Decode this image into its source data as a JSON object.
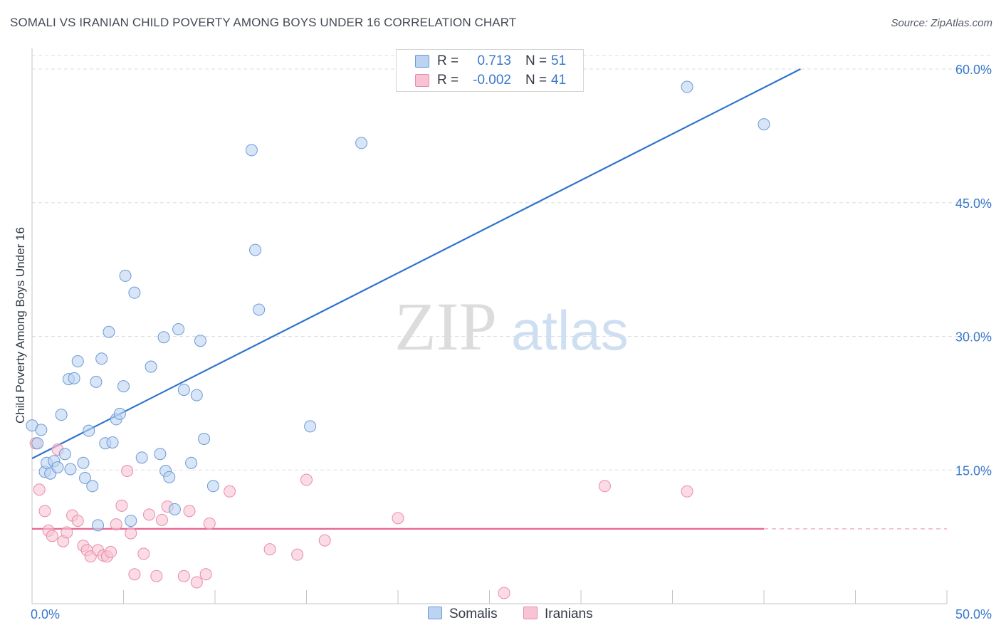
{
  "header": {
    "title": "SOMALI VS IRANIAN CHILD POVERTY AMONG BOYS UNDER 16 CORRELATION CHART",
    "source": "Source: ZipAtlas.com"
  },
  "watermark": {
    "zip": "ZIP",
    "atlas": "atlas"
  },
  "legend": {
    "rows": [
      {
        "r_label": "R =",
        "r_value": "0.713",
        "n_label": "N =",
        "n_value": "51"
      },
      {
        "r_label": "R =",
        "r_value": "-0.002",
        "n_label": "N =",
        "n_value": "41"
      }
    ]
  },
  "bottom_legend": {
    "somalis": "Somalis",
    "iranians": "Iranians"
  },
  "colors": {
    "somali_fill": "#bcd3f2",
    "somali_stroke": "#6a9ad8",
    "somali_line": "#2f74cc",
    "iranian_fill": "#f8c4d4",
    "iranian_stroke": "#e98aaa",
    "iranian_line": "#e7658f",
    "axis_label": "#3a78c9",
    "grid": "#dddddd"
  },
  "chart_data": {
    "type": "scatter",
    "title": "SOMALI VS IRANIAN CHILD POVERTY AMONG BOYS UNDER 16 CORRELATION CHART",
    "xlabel": "",
    "ylabel": "Child Poverty Among Boys Under 16",
    "xlim": [
      0,
      50
    ],
    "ylim": [
      0,
      60
    ],
    "x_tick_labels": [
      "0.0%",
      "50.0%"
    ],
    "y_ticks": [
      15,
      30,
      45,
      60
    ],
    "y_tick_labels": [
      "15.0%",
      "30.0%",
      "45.0%",
      "60.0%"
    ],
    "grid": true,
    "legend_position": "top-center",
    "series": [
      {
        "name": "Somalis",
        "r": 0.713,
        "n": 51,
        "trend": {
          "x": [
            0,
            42
          ],
          "y": [
            16.3,
            60
          ]
        },
        "points": [
          [
            0.0,
            20.0
          ],
          [
            0.3,
            18.0
          ],
          [
            0.5,
            19.5
          ],
          [
            0.7,
            14.8
          ],
          [
            0.8,
            15.8
          ],
          [
            1.0,
            14.6
          ],
          [
            1.2,
            16.0
          ],
          [
            1.4,
            15.3
          ],
          [
            1.6,
            21.2
          ],
          [
            1.8,
            16.8
          ],
          [
            2.0,
            25.2
          ],
          [
            2.1,
            15.1
          ],
          [
            2.3,
            25.3
          ],
          [
            2.5,
            27.2
          ],
          [
            2.8,
            15.8
          ],
          [
            2.9,
            14.1
          ],
          [
            3.1,
            19.4
          ],
          [
            3.3,
            13.2
          ],
          [
            3.5,
            24.9
          ],
          [
            3.6,
            8.8
          ],
          [
            3.8,
            27.5
          ],
          [
            4.0,
            18.0
          ],
          [
            4.2,
            30.5
          ],
          [
            4.4,
            18.1
          ],
          [
            4.6,
            20.7
          ],
          [
            4.8,
            21.3
          ],
          [
            5.0,
            24.4
          ],
          [
            5.1,
            36.8
          ],
          [
            5.4,
            9.3
          ],
          [
            5.6,
            34.9
          ],
          [
            6.0,
            16.4
          ],
          [
            6.5,
            26.6
          ],
          [
            7.0,
            16.8
          ],
          [
            7.2,
            29.9
          ],
          [
            7.3,
            14.9
          ],
          [
            7.5,
            14.2
          ],
          [
            7.8,
            10.6
          ],
          [
            8.0,
            30.8
          ],
          [
            8.3,
            24.0
          ],
          [
            8.7,
            15.8
          ],
          [
            9.0,
            23.4
          ],
          [
            9.2,
            29.5
          ],
          [
            9.4,
            18.5
          ],
          [
            9.9,
            13.2
          ],
          [
            12.0,
            50.9
          ],
          [
            12.2,
            39.7
          ],
          [
            12.4,
            33.0
          ],
          [
            15.2,
            19.9
          ],
          [
            18.0,
            51.7
          ],
          [
            35.8,
            58.0
          ],
          [
            40.0,
            53.8
          ]
        ]
      },
      {
        "name": "Iranians",
        "r": -0.002,
        "n": 41,
        "trend": {
          "x": [
            0,
            40
          ],
          "y": [
            8.4,
            8.4
          ],
          "dashed_extension_to": 50
        },
        "points": [
          [
            0.2,
            18.0
          ],
          [
            0.4,
            12.8
          ],
          [
            0.7,
            10.4
          ],
          [
            0.9,
            8.2
          ],
          [
            1.1,
            7.6
          ],
          [
            1.4,
            17.3
          ],
          [
            1.7,
            7.0
          ],
          [
            1.9,
            8.0
          ],
          [
            2.2,
            9.9
          ],
          [
            2.5,
            9.3
          ],
          [
            2.8,
            6.5
          ],
          [
            3.0,
            6.0
          ],
          [
            3.2,
            5.3
          ],
          [
            3.6,
            6.0
          ],
          [
            3.9,
            5.4
          ],
          [
            4.1,
            5.3
          ],
          [
            4.3,
            5.8
          ],
          [
            4.6,
            8.9
          ],
          [
            4.9,
            11.0
          ],
          [
            5.2,
            14.9
          ],
          [
            5.4,
            7.9
          ],
          [
            5.6,
            3.3
          ],
          [
            6.1,
            5.6
          ],
          [
            6.4,
            10.0
          ],
          [
            6.8,
            3.1
          ],
          [
            7.1,
            9.4
          ],
          [
            7.4,
            10.9
          ],
          [
            8.3,
            3.1
          ],
          [
            8.6,
            10.4
          ],
          [
            9.0,
            2.4
          ],
          [
            9.5,
            3.3
          ],
          [
            9.7,
            9.0
          ],
          [
            10.8,
            12.6
          ],
          [
            13.0,
            6.1
          ],
          [
            14.5,
            5.5
          ],
          [
            15.0,
            13.9
          ],
          [
            16.0,
            7.1
          ],
          [
            20.0,
            9.6
          ],
          [
            25.8,
            1.2
          ],
          [
            31.3,
            13.2
          ],
          [
            35.8,
            12.6
          ]
        ]
      }
    ]
  }
}
